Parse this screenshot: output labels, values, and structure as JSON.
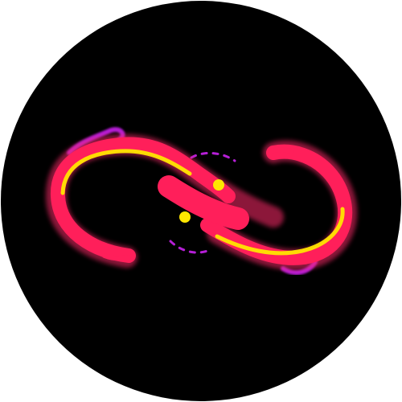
{
  "logo": {
    "name": "infinity-ribbon-logo",
    "colors": {
      "background": "#000000",
      "page": "#ffffff",
      "ribbon_primary": "#ff1f5a",
      "ribbon_glow": "#ff2a6b",
      "core_highlight": "#ffe600",
      "accent_purple": "#b51fd6",
      "accent_magenta": "#d21ac8"
    }
  }
}
